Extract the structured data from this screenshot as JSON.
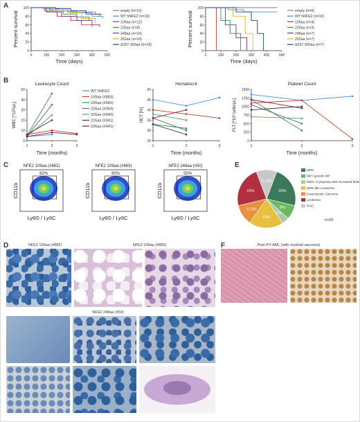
{
  "panels": {
    "a": "A",
    "b": "B",
    "c": "C",
    "d": "D",
    "e": "E",
    "f": "F"
  },
  "survival": [
    {
      "ylabel": "Percent survival",
      "xlabel": "Time (days)",
      "yticks": [
        "0",
        "20",
        "40",
        "60",
        "80",
        "100"
      ],
      "xticks": [
        "0",
        "100",
        "200",
        "300",
        "400",
        "500"
      ],
      "xlim": [
        0,
        500
      ],
      "ylim": [
        0,
        100
      ],
      "legend": [
        {
          "label": "empty (n=10)",
          "color": "#7f7f7f"
        },
        {
          "label": "WT hNFE2 (n=16)",
          "color": "#4a90d9"
        },
        {
          "label": "109aa (n=12)",
          "color": "#c0392b"
        },
        {
          "label": "226aa (n=8)",
          "color": "#2e8b57"
        },
        {
          "label": "248aa (n=10)",
          "color": "#6a2c91"
        },
        {
          "label": "262aa (n=10)",
          "color": "#e6b422"
        },
        {
          "label": "Δ297-300aa (n=18)",
          "color": "#1f3a93"
        }
      ],
      "series": [
        {
          "color": "#7f7f7f",
          "points": [
            [
              0,
              100
            ],
            [
              60,
              100
            ],
            [
              120,
              95
            ],
            [
              240,
              90
            ],
            [
              420,
              85
            ],
            [
              470,
              85
            ]
          ]
        },
        {
          "color": "#4a90d9",
          "points": [
            [
              0,
              100
            ],
            [
              80,
              97
            ],
            [
              180,
              92
            ],
            [
              300,
              88
            ],
            [
              400,
              80
            ],
            [
              470,
              75
            ]
          ]
        },
        {
          "color": "#c0392b",
          "points": [
            [
              0,
              100
            ],
            [
              90,
              92
            ],
            [
              170,
              80
            ],
            [
              260,
              70
            ],
            [
              330,
              60
            ],
            [
              400,
              55
            ]
          ]
        },
        {
          "color": "#2e8b57",
          "points": [
            [
              0,
              100
            ],
            [
              120,
              95
            ],
            [
              210,
              85
            ],
            [
              300,
              78
            ],
            [
              380,
              70
            ]
          ]
        },
        {
          "color": "#6a2c91",
          "points": [
            [
              0,
              100
            ],
            [
              100,
              90
            ],
            [
              200,
              80
            ],
            [
              300,
              70
            ],
            [
              400,
              60
            ],
            [
              450,
              55
            ]
          ]
        },
        {
          "color": "#e6b422",
          "points": [
            [
              0,
              100
            ],
            [
              140,
              95
            ],
            [
              250,
              88
            ],
            [
              330,
              75
            ],
            [
              420,
              62
            ]
          ]
        },
        {
          "color": "#1f3a93",
          "points": [
            [
              0,
              100
            ],
            [
              160,
              98
            ],
            [
              260,
              93
            ],
            [
              360,
              85
            ],
            [
              450,
              80
            ]
          ]
        }
      ]
    },
    {
      "ylabel": "Percent survival",
      "xlabel": "Time (days)",
      "yticks": [
        "0",
        "20",
        "40",
        "60",
        "80",
        "100"
      ],
      "xticks": [
        "0",
        "100",
        "200",
        "300",
        "400",
        "500"
      ],
      "xlim": [
        0,
        500
      ],
      "ylim": [
        0,
        100
      ],
      "legend": [
        {
          "label": "empty (n=8)",
          "color": "#7f7f7f"
        },
        {
          "label": "WT hNFE2 (n=10)",
          "color": "#4a90d9"
        },
        {
          "label": "109aa (n=4)",
          "color": "#c0392b"
        },
        {
          "label": "226aa (n=4)",
          "color": "#2e8b57"
        },
        {
          "label": "248aa (n=7)",
          "color": "#6a2c91"
        },
        {
          "label": "262aa (n=7)",
          "color": "#e6b422"
        },
        {
          "label": "Δ297-300aa (n=7)",
          "color": "#1f3a93"
        }
      ],
      "series": [
        {
          "color": "#7f7f7f",
          "points": [
            [
              0,
              100
            ],
            [
              150,
              100
            ],
            [
              300,
              100
            ],
            [
              470,
              100
            ]
          ]
        },
        {
          "color": "#4a90d9",
          "points": [
            [
              0,
              100
            ],
            [
              150,
              95
            ],
            [
              250,
              90
            ],
            [
              470,
              90
            ]
          ]
        },
        {
          "color": "#c0392b",
          "points": [
            [
              0,
              100
            ],
            [
              60,
              100
            ],
            [
              70,
              0
            ]
          ]
        },
        {
          "color": "#2e8b57",
          "points": [
            [
              0,
              100
            ],
            [
              100,
              70
            ],
            [
              160,
              40
            ],
            [
              230,
              0
            ]
          ]
        },
        {
          "color": "#6a2c91",
          "points": [
            [
              0,
              100
            ],
            [
              130,
              60
            ],
            [
              200,
              30
            ],
            [
              270,
              0
            ]
          ]
        },
        {
          "color": "#e6b422",
          "points": [
            [
              0,
              100
            ],
            [
              180,
              80
            ],
            [
              260,
              40
            ],
            [
              310,
              0
            ]
          ]
        },
        {
          "color": "#1f3a93",
          "points": [
            [
              0,
              100
            ],
            [
              200,
              90
            ],
            [
              300,
              70
            ],
            [
              340,
              40
            ],
            [
              380,
              0
            ]
          ]
        }
      ]
    }
  ],
  "blood": [
    {
      "title": "Leukocyte Count",
      "ylabel": "WBC [*10³/µL]",
      "xlabel": "Time (months)",
      "yticks": [
        "0",
        "10",
        "20",
        "30",
        "40",
        "50"
      ],
      "xticks": [
        "1",
        "2",
        "3"
      ],
      "ylim": [
        0,
        50
      ]
    },
    {
      "title": "Hematocrit",
      "ylabel": "HCT [%]",
      "xlabel": "Time (months)",
      "yticks": [
        "25",
        "30",
        "35",
        "40",
        "45",
        "50"
      ],
      "xticks": [
        "1",
        "2",
        "3"
      ],
      "ylim": [
        25,
        50
      ]
    },
    {
      "title": "Platelet Count",
      "ylabel": "PLT [*10³ cells/µL]",
      "xlabel": "Time (months)",
      "yticks": [
        "0",
        "250",
        "500",
        "750",
        "1000",
        "1250",
        "1500"
      ],
      "xticks": [
        "1",
        "2",
        "3"
      ],
      "ylim": [
        0,
        1500
      ]
    }
  ],
  "blood_legend": [
    {
      "label": "WT hNFE2",
      "color": "#4a90d9"
    },
    {
      "label": "109aa (#883)",
      "color": "#c0392b"
    },
    {
      "label": "226aa (#942)",
      "color": "#2e8b57"
    },
    {
      "label": "226aa (#943)",
      "color": "#666666"
    },
    {
      "label": "226aa (#940)",
      "color": "#5aa05a"
    },
    {
      "label": "226aa (#941)",
      "color": "#333333"
    },
    {
      "label": "226aa (#941)",
      "color": "#7a1a3a"
    }
  ],
  "chart_data": [
    {
      "type": "line",
      "title": "Leukocyte Count",
      "xlabel": "Time (months)",
      "ylabel": "WBC [*10³/µL]",
      "x": [
        1,
        2,
        3
      ],
      "ylim": [
        0,
        50
      ],
      "series": [
        {
          "name": "WT hNFE2",
          "color": "#4a90d9",
          "values": [
            4,
            6,
            null
          ]
        },
        {
          "name": "109aa (#883)",
          "color": "#c0392b",
          "values": [
            6,
            10,
            7
          ]
        },
        {
          "name": "226aa (#942)",
          "color": "#2e8b57",
          "values": [
            5,
            46,
            null
          ]
        },
        {
          "name": "226aa (#943)",
          "color": "#666666",
          "values": [
            4,
            35,
            null
          ]
        },
        {
          "name": "226aa (#940)",
          "color": "#5aa05a",
          "values": [
            4,
            25,
            null
          ]
        },
        {
          "name": "226aa (#941)",
          "color": "#333333",
          "values": [
            6,
            20,
            null
          ]
        },
        {
          "name": "226aa (#941)",
          "color": "#7a1a3a",
          "values": [
            4,
            8,
            6
          ]
        }
      ]
    },
    {
      "type": "line",
      "title": "Hematocrit",
      "xlabel": "Time (months)",
      "ylabel": "HCT [%]",
      "x": [
        1,
        2,
        3
      ],
      "ylim": [
        25,
        50
      ],
      "series": [
        {
          "name": "WT hNFE2",
          "color": "#4a90d9",
          "values": [
            45,
            42,
            46
          ]
        },
        {
          "name": "109aa (#883)",
          "color": "#c0392b",
          "values": [
            40,
            38,
            36
          ]
        },
        {
          "name": "226aa (#942)",
          "color": "#2e8b57",
          "values": [
            33,
            31,
            null
          ]
        },
        {
          "name": "226aa (#943)",
          "color": "#666666",
          "values": [
            36,
            30,
            null
          ]
        },
        {
          "name": "226aa (#940)",
          "color": "#5aa05a",
          "values": [
            38,
            35,
            null
          ]
        },
        {
          "name": "226aa (#941)",
          "color": "#333333",
          "values": [
            33,
            28,
            null
          ]
        },
        {
          "name": "226aa (#941)",
          "color": "#7a1a3a",
          "values": [
            36,
            40,
            null
          ]
        }
      ]
    },
    {
      "type": "line",
      "title": "Platelet Count",
      "xlabel": "Time (months)",
      "ylabel": "PLT [*10³ cells/µL]",
      "x": [
        1,
        2,
        3
      ],
      "ylim": [
        0,
        1500
      ],
      "series": [
        {
          "name": "WT hNFE2",
          "color": "#4a90d9",
          "values": [
            1350,
            1180,
            1300
          ]
        },
        {
          "name": "109aa (#883)",
          "color": "#c0392b",
          "values": [
            1100,
            1180,
            50
          ]
        },
        {
          "name": "226aa (#942)",
          "color": "#2e8b57",
          "values": [
            1200,
            300,
            null
          ]
        },
        {
          "name": "226aa (#943)",
          "color": "#666666",
          "values": [
            1050,
            500,
            null
          ]
        },
        {
          "name": "226aa (#940)",
          "color": "#5aa05a",
          "values": [
            700,
            650,
            null
          ]
        },
        {
          "name": "226aa (#941)",
          "color": "#333333",
          "values": [
            900,
            1000,
            null
          ]
        },
        {
          "name": "226aa (#941)",
          "color": "#7a1a3a",
          "values": [
            1200,
            950,
            null
          ]
        }
      ]
    },
    {
      "type": "pie",
      "n_label": "n=26",
      "slices": [
        {
          "label": "MPD",
          "value": 23,
          "color": "#3a7a5a",
          "pct": "23%"
        },
        {
          "label": "MP / genetic MP",
          "value": 8,
          "color": "#6aba5a",
          "pct": "8%"
        },
        {
          "label": "MDS / Cytopenia with increased blasts",
          "value": 4,
          "color": "#a8c8b0",
          "pct": "4%"
        },
        {
          "label": "MPD-like Leukemia",
          "value": 19,
          "color": "#e8c040",
          "pct": "19%"
        },
        {
          "label": "Granulocytic Sarcoma",
          "value": 11.5,
          "color": "#e89040",
          "pct": "11.5%"
        },
        {
          "label": "Leukemia",
          "value": 23,
          "color": "#b03040",
          "pct": "23%"
        },
        {
          "label": "NAD",
          "value": 11.5,
          "color": "#c8c8c8",
          "pct": "11.5%"
        }
      ]
    }
  ],
  "flow": [
    {
      "title": "NFE2 109aa (#882)",
      "pct": "62%",
      "ylabel": "CD11b",
      "xlabel": "Ly6G / Ly6C"
    },
    {
      "title": "NFE2 109aa (#883)",
      "pct": "65%",
      "ylabel": "CD11b",
      "xlabel": "Ly6G / Ly6C"
    },
    {
      "title": "NFE2 248aa (#50)",
      "pct": "55%",
      "ylabel": "CD11b",
      "xlabel": "Ly6G / Ly6C"
    }
  ],
  "micro_labels": {
    "d1": "NFE2 109aa (#882)",
    "d2": "NFE2 109aa (#883)",
    "d3": "NFE2 248aa (#50)",
    "f": "Post-PV AML (with myeloid sarcoma)"
  }
}
